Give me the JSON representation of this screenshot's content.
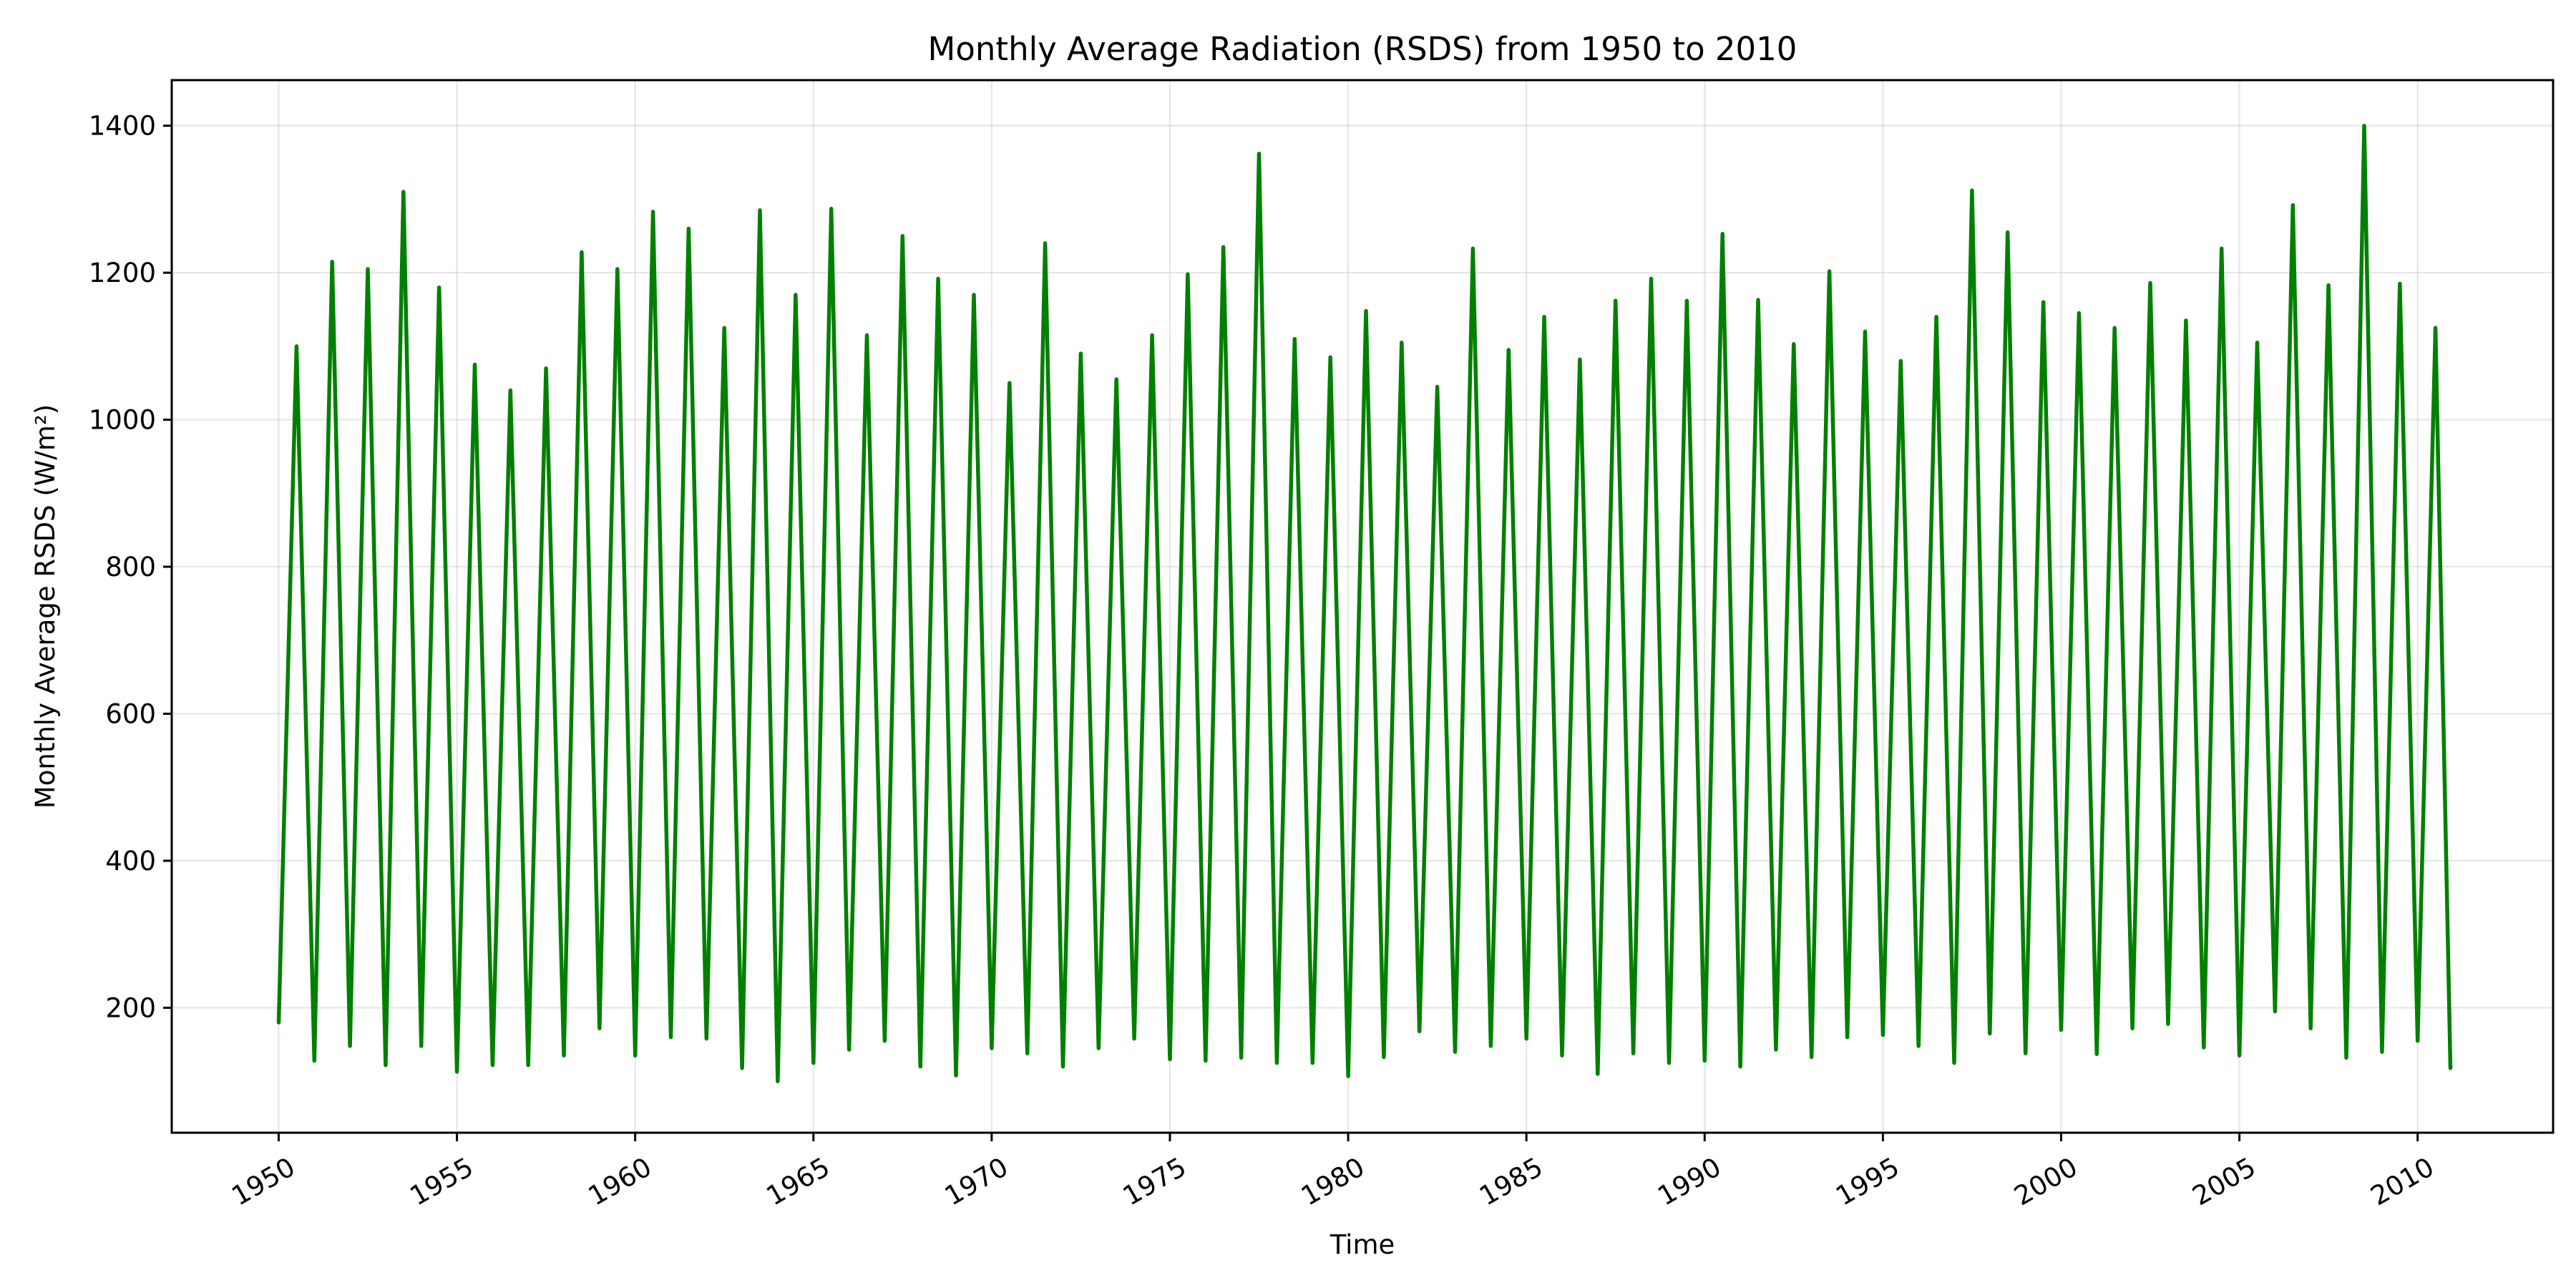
{
  "chart_data": {
    "type": "line",
    "title": "Monthly Average Radiation (RSDS) from 1950 to 2010",
    "xlabel": "Time",
    "ylabel": "Monthly Average RSDS (W/m²)",
    "xlim": [
      1947.0,
      2013.8
    ],
    "ylim": [
      30,
      1462
    ],
    "xticks": [
      1950,
      1955,
      1960,
      1965,
      1970,
      1975,
      1980,
      1985,
      1990,
      1995,
      2000,
      2005,
      2010
    ],
    "yticks": [
      200,
      400,
      600,
      800,
      1000,
      1200,
      1400
    ],
    "grid": true,
    "legend": "none",
    "series": [
      {
        "color": "#008000",
        "x": [
          1950.0,
          1950.5,
          1951.0,
          1951.5,
          1952.0,
          1952.5,
          1953.0,
          1953.5,
          1954.0,
          1954.5,
          1955.0,
          1955.5,
          1956.0,
          1956.5,
          1957.0,
          1957.5,
          1958.0,
          1958.5,
          1959.0,
          1959.5,
          1960.0,
          1960.5,
          1961.0,
          1961.5,
          1962.0,
          1962.5,
          1963.0,
          1963.5,
          1964.0,
          1964.5,
          1965.0,
          1965.5,
          1966.0,
          1966.5,
          1967.0,
          1967.5,
          1968.0,
          1968.5,
          1969.0,
          1969.5,
          1970.0,
          1970.5,
          1971.0,
          1971.5,
          1972.0,
          1972.5,
          1973.0,
          1973.5,
          1974.0,
          1974.5,
          1975.0,
          1975.5,
          1976.0,
          1976.5,
          1977.0,
          1977.5,
          1978.0,
          1978.5,
          1979.0,
          1979.5,
          1980.0,
          1980.5,
          1981.0,
          1981.5,
          1982.0,
          1982.5,
          1983.0,
          1983.5,
          1984.0,
          1984.5,
          1985.0,
          1985.5,
          1986.0,
          1986.5,
          1987.0,
          1987.5,
          1988.0,
          1988.5,
          1989.0,
          1989.5,
          1990.0,
          1990.5,
          1991.0,
          1991.5,
          1992.0,
          1992.5,
          1993.0,
          1993.5,
          1994.0,
          1994.5,
          1995.0,
          1995.5,
          1996.0,
          1996.5,
          1997.0,
          1997.5,
          1998.0,
          1998.5,
          1999.0,
          1999.5,
          2000.0,
          2000.5,
          2001.0,
          2001.5,
          2002.0,
          2002.5,
          2003.0,
          2003.5,
          2004.0,
          2004.5,
          2005.0,
          2005.5,
          2006.0,
          2006.5,
          2007.0,
          2007.5,
          2008.0,
          2008.5,
          2009.0,
          2009.5,
          2010.0,
          2010.5,
          2010.92
        ],
        "values": [
          180,
          1100,
          128,
          1215,
          148,
          1205,
          122,
          1310,
          148,
          1180,
          113,
          1075,
          122,
          1040,
          122,
          1070,
          135,
          1228,
          172,
          1205,
          135,
          1283,
          160,
          1260,
          158,
          1125,
          118,
          1285,
          100,
          1170,
          125,
          1287,
          143,
          1115,
          155,
          1250,
          120,
          1192,
          108,
          1170,
          145,
          1050,
          138,
          1240,
          120,
          1090,
          145,
          1055,
          158,
          1115,
          130,
          1198,
          128,
          1235,
          132,
          1362,
          125,
          1110,
          125,
          1085,
          107,
          1148,
          133,
          1105,
          168,
          1045,
          140,
          1233,
          148,
          1095,
          158,
          1140,
          135,
          1082,
          110,
          1162,
          138,
          1192,
          125,
          1162,
          128,
          1253,
          120,
          1163,
          143,
          1103,
          133,
          1202,
          160,
          1120,
          163,
          1080,
          148,
          1140,
          125,
          1312,
          165,
          1255,
          138,
          1160,
          170,
          1145,
          137,
          1125,
          172,
          1186,
          178,
          1135,
          146,
          1233,
          135,
          1105,
          195,
          1292,
          172,
          1183,
          132,
          1400,
          140,
          1185,
          155,
          1125,
          118
        ]
      }
    ]
  }
}
